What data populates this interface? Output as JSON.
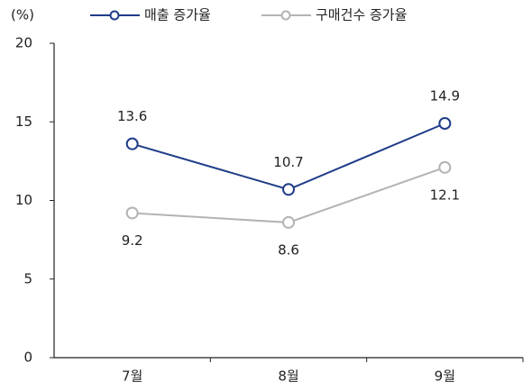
{
  "chart_data": {
    "type": "line",
    "y_label": "(%)",
    "categories": [
      "7월",
      "8월",
      "9월"
    ],
    "series": [
      {
        "name": "매출 증가율",
        "color": "#1f3c88",
        "values": [
          13.6,
          10.7,
          14.9
        ]
      },
      {
        "name": "구매건수 증가율",
        "color": "#b3b3b3",
        "values": [
          9.2,
          8.6,
          12.1
        ]
      }
    ],
    "ylim": [
      0,
      20
    ],
    "yticks": [
      0,
      5,
      10,
      15,
      20
    ]
  }
}
